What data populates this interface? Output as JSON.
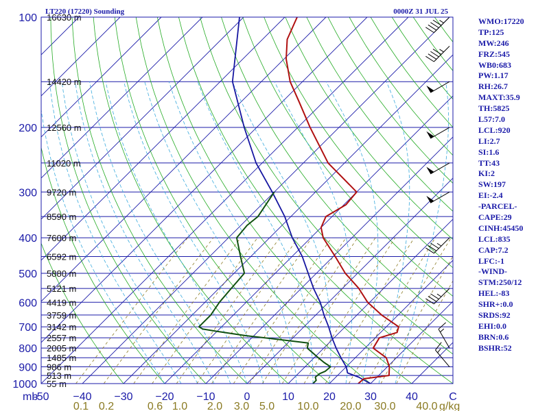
{
  "header": {
    "station": "LT220 (17220) Sounding",
    "time": "0000Z 31 JUL 25"
  },
  "indices": [
    "WMO:17220",
    "TP:125",
    "MW:246",
    "FRZ:545",
    "WB0:683",
    "PW:1.17",
    "RH:26.7",
    "MAXT:35.9",
    "TH:5825",
    "L57:7.0",
    "LCL:920",
    "LI:2.7",
    "SI:1.6",
    "TT:43",
    "KI:2",
    "SW:197",
    "EI:-2.4",
    "-PARCEL-",
    "CAPE:29",
    "CINH:45450",
    "LCL:835",
    "CAP:7.2",
    "LFC:-1",
    "-WIND-",
    "STM:250/12",
    "HEL:-83",
    "SHR+:0.0",
    "SRDS:92",
    "EHI:0.0",
    "BRN:0.6",
    "BSHR:52"
  ],
  "colors": {
    "frame": "#1a1aa8",
    "isobar": "#1a1aa8",
    "isotherm": "#1a1aa8",
    "dry_adiabat": "#22aa22",
    "moist_adiabat": "#3aaadd",
    "mixing_ratio": "#8a7a22",
    "temperature": "#b01010",
    "dewpoint": "#105010",
    "parcel": "#1515a0",
    "wind_barb": "#000000"
  },
  "chart_data": {
    "type": "skew-t",
    "pressure_levels": [
      100,
      200,
      300,
      400,
      500,
      600,
      700,
      800,
      900,
      1000
    ],
    "pressure_tick_labels": [
      "100",
      "200",
      "300",
      "400",
      "500",
      "600",
      "700",
      "800",
      "900",
      "1000"
    ],
    "height_labels": [
      {
        "p": 100,
        "label": "16630 m"
      },
      {
        "p": 150,
        "label": "14420 m"
      },
      {
        "p": 200,
        "label": "12560 m"
      },
      {
        "p": 250,
        "label": "11020 m"
      },
      {
        "p": 300,
        "label": "9720 m"
      },
      {
        "p": 350,
        "label": "8590 m"
      },
      {
        "p": 400,
        "label": "7600 m"
      },
      {
        "p": 450,
        "label": "6592 m"
      },
      {
        "p": 500,
        "label": "5880 m"
      },
      {
        "p": 550,
        "label": "5121 m"
      },
      {
        "p": 600,
        "label": "4419 m"
      },
      {
        "p": 650,
        "label": "3759 m"
      },
      {
        "p": 700,
        "label": "3142 m"
      },
      {
        "p": 750,
        "label": "2557 m"
      },
      {
        "p": 800,
        "label": "2005 m"
      },
      {
        "p": 850,
        "label": "1485 m"
      },
      {
        "p": 900,
        "label": "986 m"
      },
      {
        "p": 950,
        "label": "513 m"
      },
      {
        "p": 1000,
        "label": "55 m"
      }
    ],
    "temperature_ticks": [
      -50,
      -40,
      -30,
      -20,
      -10,
      0,
      10,
      20,
      30,
      40,
      50
    ],
    "temperature_tick_labels": [
      "-50",
      "−40",
      "−30",
      "−20",
      "−10",
      "0",
      "10",
      "20",
      "30",
      "40",
      "C"
    ],
    "pressure_unit": "mb",
    "mixing_ratio_ticks": [
      "0.1",
      "0.2",
      "0.6",
      "1.0",
      "2.0",
      "3.0",
      "5.0",
      "10.0",
      "20.0",
      "30.0",
      "40.0"
    ],
    "mixing_ratio_unit": "g/kg",
    "p_range": [
      100,
      1000
    ],
    "t_range_at_1000": [
      -50,
      50
    ],
    "temperature_profile": [
      [
        1000,
        27.0
      ],
      [
        970,
        27.2
      ],
      [
        950,
        32.5
      ],
      [
        925,
        31.5
      ],
      [
        900,
        30.5
      ],
      [
        850,
        27.5
      ],
      [
        800,
        22.0
      ],
      [
        750,
        21.0
      ],
      [
        725,
        24.0
      ],
      [
        700,
        23.0
      ],
      [
        650,
        16.0
      ],
      [
        600,
        9.5
      ],
      [
        550,
        4.0
      ],
      [
        500,
        -3.0
      ],
      [
        450,
        -9.5
      ],
      [
        400,
        -17.0
      ],
      [
        375,
        -20.0
      ],
      [
        350,
        -21.5
      ],
      [
        325,
        -19.5
      ],
      [
        300,
        -20.0
      ],
      [
        250,
        -34.0
      ],
      [
        200,
        -47.0
      ],
      [
        170,
        -56.0
      ],
      [
        150,
        -63.0
      ],
      [
        130,
        -69.5
      ],
      [
        115,
        -74.0
      ],
      [
        100,
        -77.0
      ]
    ],
    "dewpoint_profile": [
      [
        1000,
        16.0
      ],
      [
        980,
        16.0
      ],
      [
        960,
        15.0
      ],
      [
        940,
        15.2
      ],
      [
        925,
        16.0
      ],
      [
        900,
        16.2
      ],
      [
        875,
        13.5
      ],
      [
        850,
        11.0
      ],
      [
        800,
        6.0
      ],
      [
        775,
        5.0
      ],
      [
        760,
        -2.0
      ],
      [
        740,
        -12.0
      ],
      [
        720,
        -20.0
      ],
      [
        710,
        -24.0
      ],
      [
        700,
        -25.5
      ],
      [
        650,
        -25.5
      ],
      [
        600,
        -26.5
      ],
      [
        550,
        -27.0
      ],
      [
        500,
        -27.5
      ],
      [
        450,
        -32.5
      ],
      [
        400,
        -38.0
      ],
      [
        370,
        -38.5
      ],
      [
        350,
        -38.0
      ],
      [
        300,
        -40.0
      ]
    ],
    "parcel_profile": [
      [
        1000,
        30.0
      ],
      [
        960,
        25.5
      ],
      [
        935,
        21.8
      ],
      [
        900,
        20.0
      ],
      [
        850,
        16.5
      ],
      [
        800,
        13.0
      ],
      [
        750,
        9.5
      ],
      [
        700,
        6.0
      ],
      [
        650,
        2.0
      ],
      [
        600,
        -2.0
      ],
      [
        550,
        -7.0
      ],
      [
        500,
        -12.0
      ],
      [
        450,
        -17.5
      ],
      [
        400,
        -24.5
      ],
      [
        350,
        -31.5
      ],
      [
        300,
        -40.5
      ],
      [
        250,
        -51.5
      ],
      [
        200,
        -63.0
      ],
      [
        150,
        -77.0
      ],
      [
        100,
        -91.0
      ]
    ],
    "wind_barbs": [
      {
        "p": 100,
        "dir": 225,
        "spd": 45
      },
      {
        "p": 120,
        "dir": 225,
        "spd": 45
      },
      {
        "p": 150,
        "dir": 240,
        "spd": 50
      },
      {
        "p": 200,
        "dir": 240,
        "spd": 50
      },
      {
        "p": 250,
        "dir": 240,
        "spd": 50
      },
      {
        "p": 300,
        "dir": 240,
        "spd": 50
      },
      {
        "p": 400,
        "dir": 225,
        "spd": 35
      },
      {
        "p": 550,
        "dir": 225,
        "spd": 35
      },
      {
        "p": 800,
        "dir": 330,
        "spd": 15
      },
      {
        "p": 900,
        "dir": 320,
        "spd": 15
      }
    ]
  }
}
